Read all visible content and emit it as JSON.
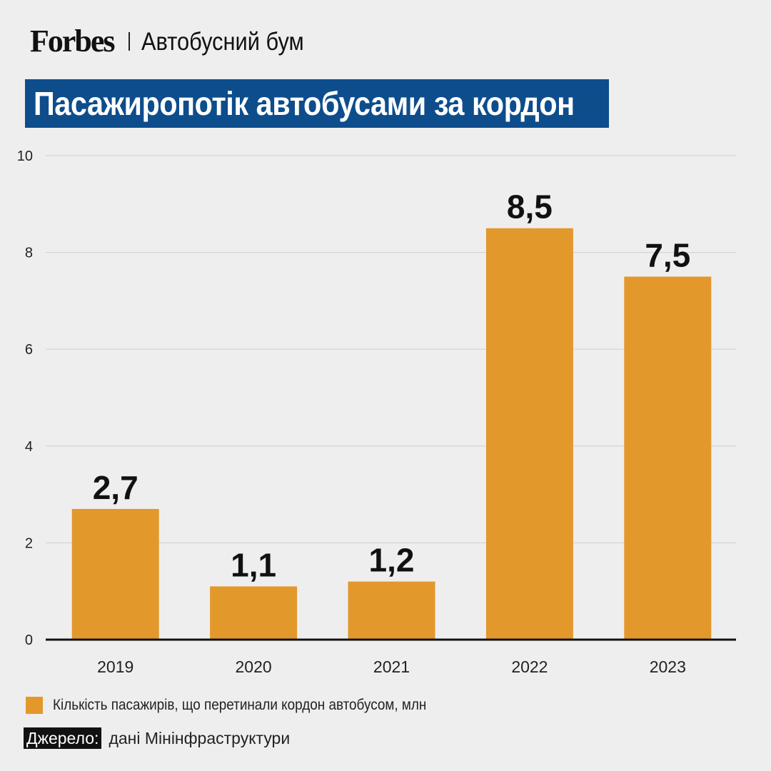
{
  "header": {
    "brand": "Forbes",
    "subtitle": "Автобусний бум"
  },
  "title": "Пасажиропотік автобусами за кордон",
  "chart_data": {
    "type": "bar",
    "categories": [
      "2019",
      "2020",
      "2021",
      "2022",
      "2023"
    ],
    "series": [
      {
        "name": "Кількість пасажирів, що перетинали кордон автобусом, млн",
        "values": [
          2.7,
          1.1,
          1.2,
          8.5,
          7.5
        ],
        "labels": [
          "2,7",
          "1,1",
          "1,2",
          "8,5",
          "7,5"
        ],
        "color": "#e2982b"
      }
    ],
    "ylim": [
      0,
      10
    ],
    "yticks": [
      0,
      2,
      4,
      6,
      8,
      10
    ],
    "grid": true,
    "legend_position": "bottom-left"
  },
  "legend": {
    "label": "Кількість пасажирів, що перетинали кордон автобусом, млн",
    "color": "#e2982b"
  },
  "source": {
    "tag": "Джерело:",
    "text": "дані Мінінфраструктури"
  },
  "colors": {
    "title_bg": "#0d4d8c",
    "bar": "#e2982b",
    "background": "#efeeef"
  }
}
